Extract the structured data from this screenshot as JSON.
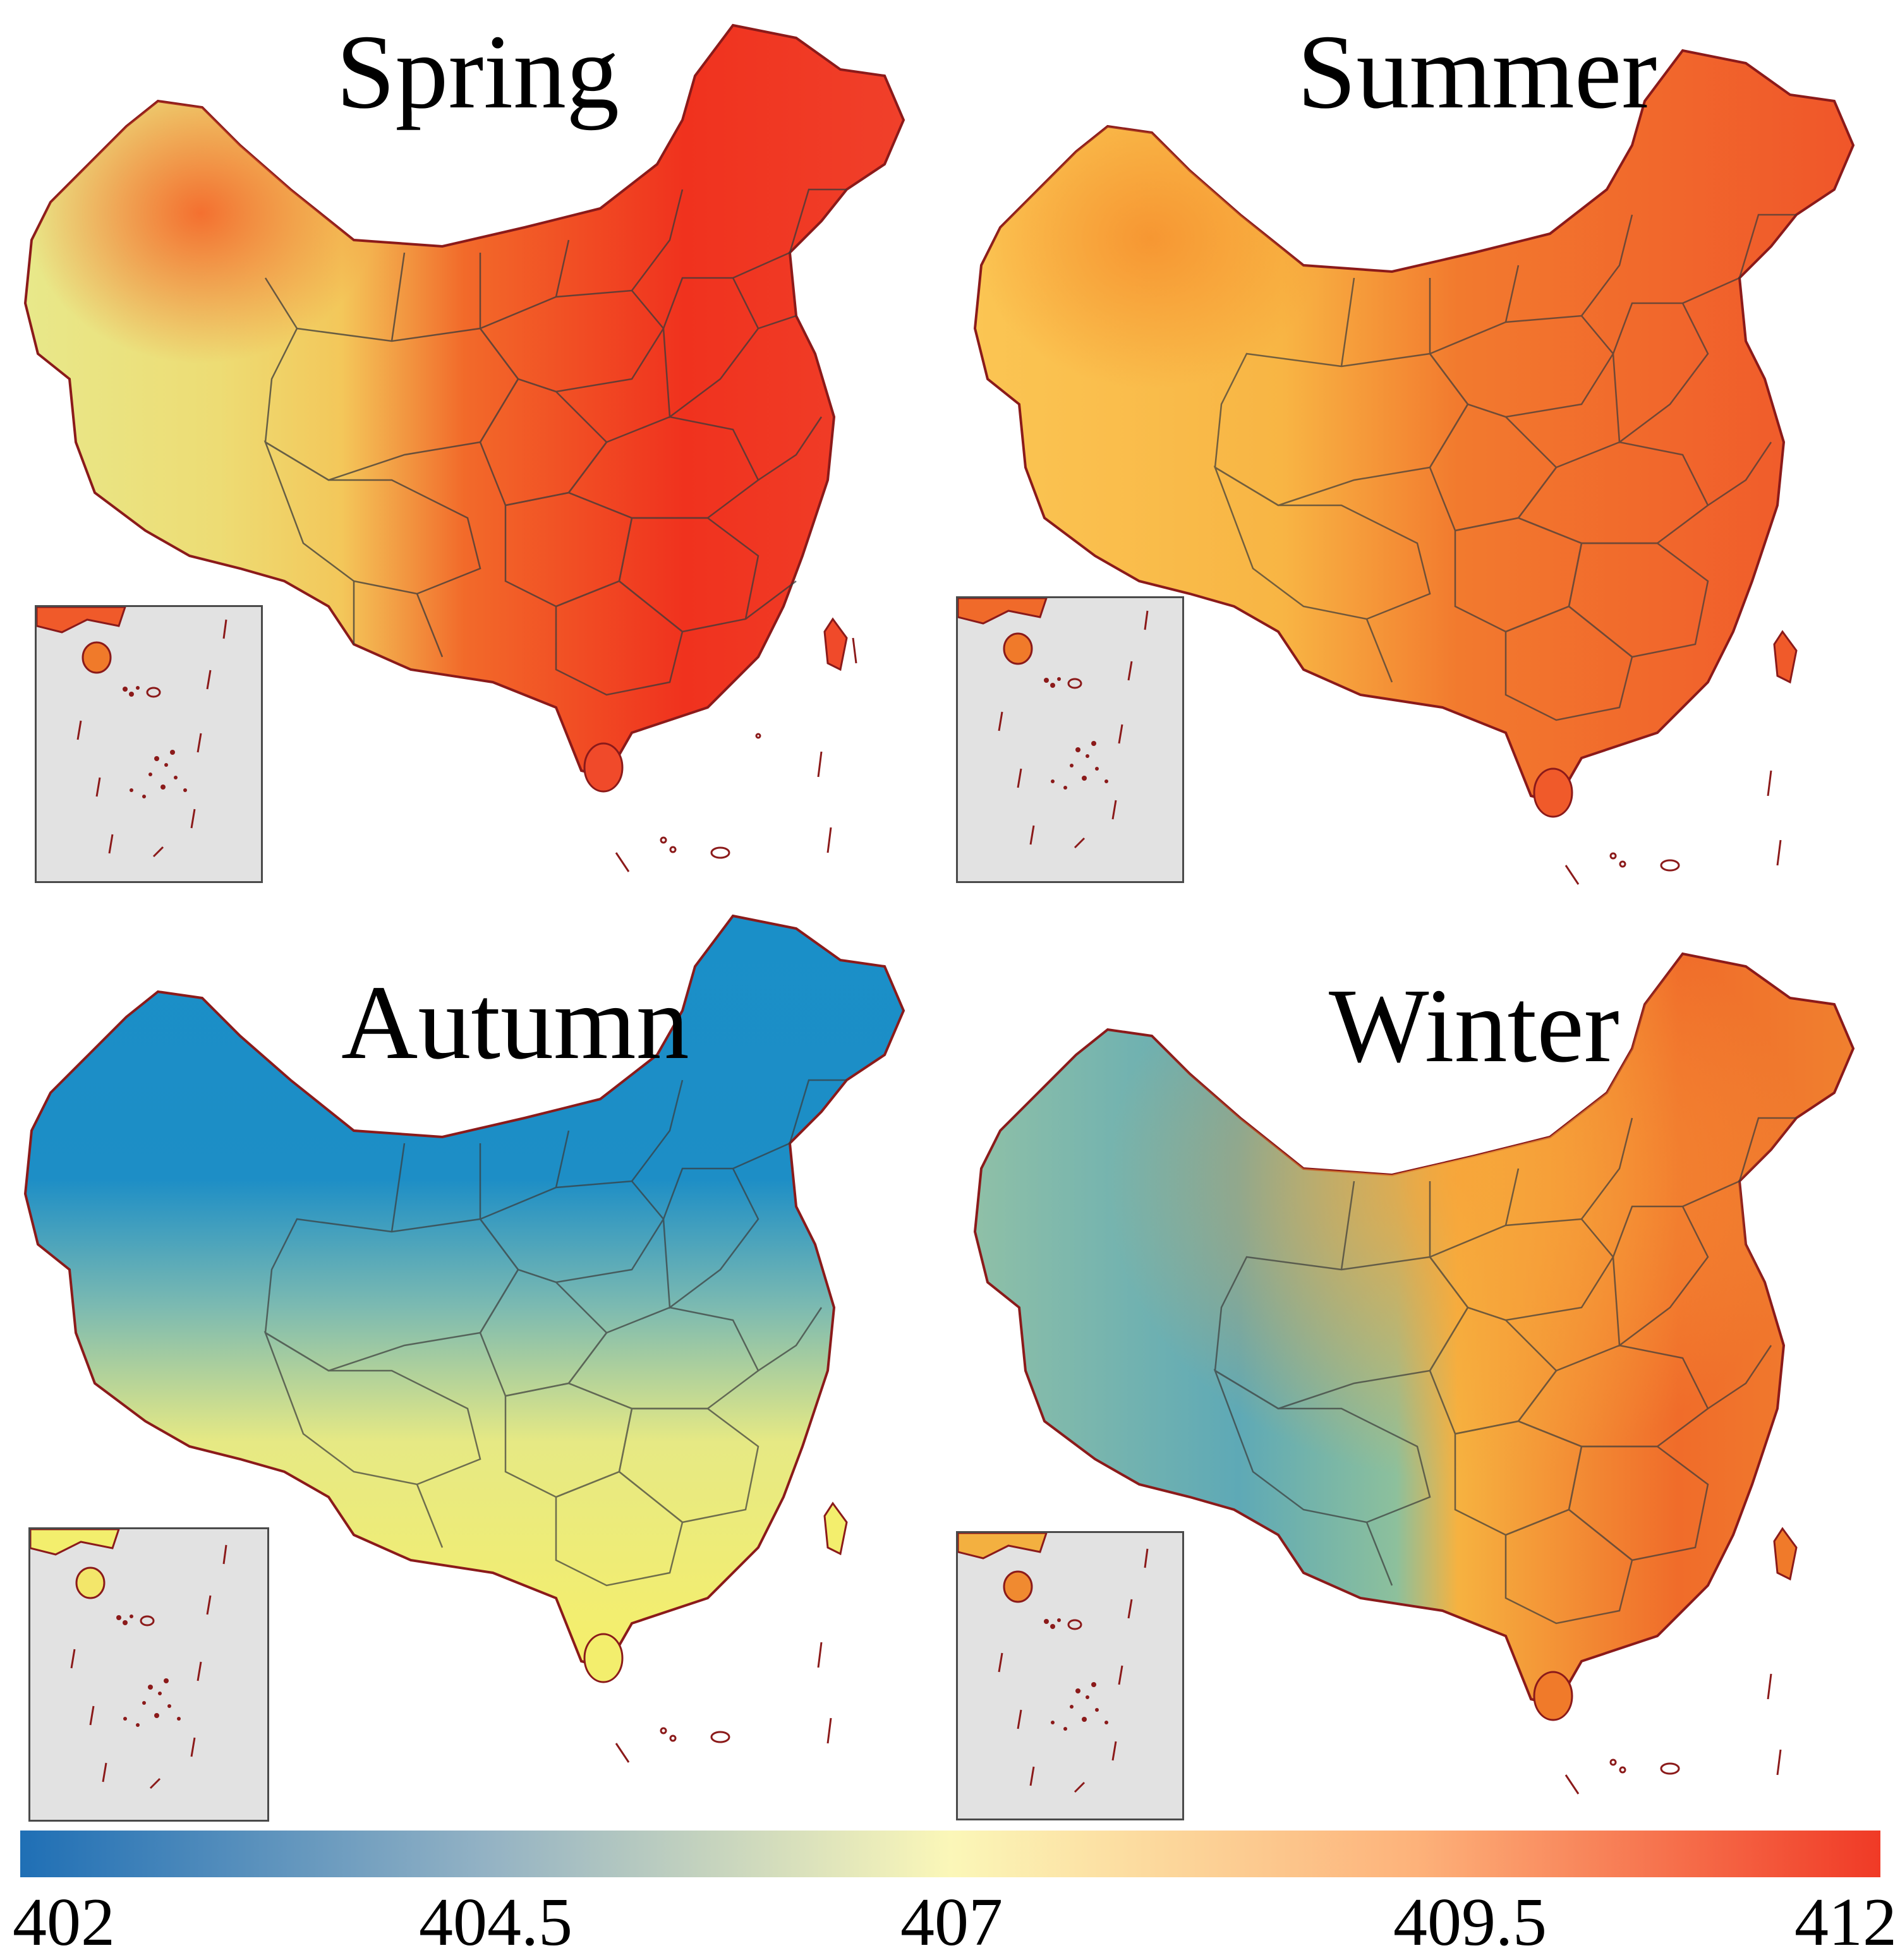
{
  "panels": [
    {
      "id": "spring",
      "title": "Spring"
    },
    {
      "id": "summer",
      "title": "Summer"
    },
    {
      "id": "autumn",
      "title": "Autumn"
    },
    {
      "id": "winter",
      "title": "Winter"
    }
  ],
  "colorbar": {
    "min": 402,
    "max": 412,
    "ticks": [
      "402",
      "404.5",
      "407",
      "409.5",
      "412"
    ],
    "colors": [
      "#1f6fb5",
      "#93b2c4",
      "#fbf7b8",
      "#fdb27a",
      "#f03a26"
    ]
  },
  "map_colors": {
    "spring": {
      "west": "#e6e88a",
      "north": "#f26a2a",
      "east": "#f0321e",
      "southwest": "#f3dc6a"
    },
    "summer": {
      "west": "#f9c24e",
      "north": "#f6922f",
      "east": "#f0562a",
      "southwest": "#f6a640"
    },
    "autumn": {
      "west": "#dfe77f",
      "north": "#1d8ec6",
      "east": "#f3ee6d",
      "southwest": "#f2ec6f"
    },
    "winter": {
      "west": "#6eb0b5",
      "north": "#f6a23a",
      "east": "#f06d2b",
      "southwest": "#79b8b0"
    },
    "border": "#8b1a1a",
    "province_line": "#3a3a3a",
    "inset_bg": "#e2e2e2"
  }
}
